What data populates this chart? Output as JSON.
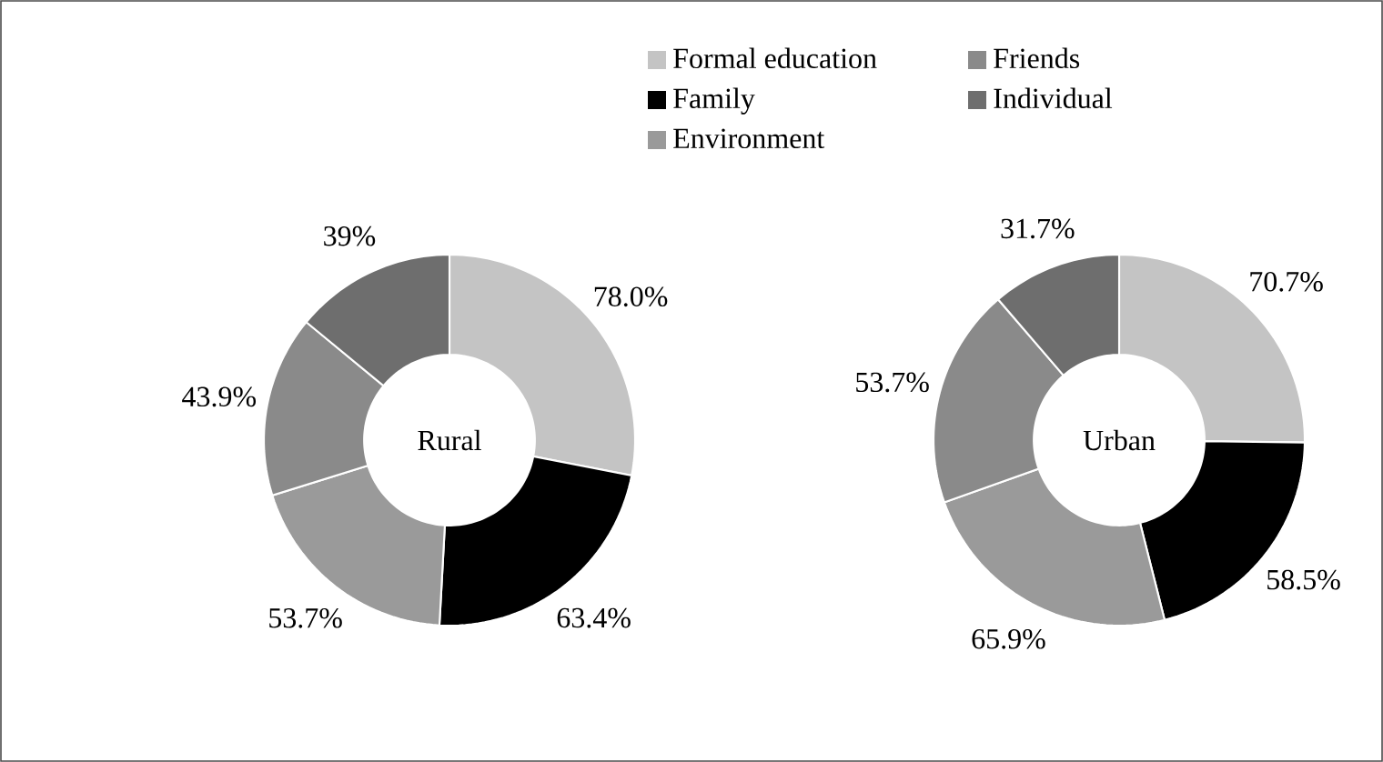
{
  "chart_data": {
    "type": "donut",
    "categories": [
      "Formal education",
      "Family",
      "Environment",
      "Friends",
      "Individual"
    ],
    "colors": [
      "#c4c4c4",
      "#000000",
      "#9a9a9a",
      "#8a8a8a",
      "#6e6e6e"
    ],
    "legend": "top",
    "series": [
      {
        "name": "Rural",
        "values": [
          78.0,
          63.4,
          53.7,
          43.9,
          39
        ],
        "value_labels": [
          "78.0%",
          "63.4%",
          "53.7%",
          "43.9%",
          "39%"
        ]
      },
      {
        "name": "Urban",
        "values": [
          70.7,
          58.5,
          65.9,
          53.7,
          31.7
        ],
        "value_labels": [
          "70.7%",
          "58.5%",
          "65.9%",
          "53.7%",
          "31.7%"
        ]
      }
    ]
  }
}
